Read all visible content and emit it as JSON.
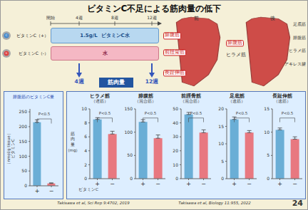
{
  "title": "ビタミンC不足による筋肉量の低下",
  "annotations": [
    "開始",
    "4週",
    "8週",
    "12週",
    "ビタミンC（+）",
    "1.5g/L  ビタミンC水",
    "ビタミンC（-）",
    "水",
    "C",
    "✕",
    "4週",
    "12週",
    "筋肉量",
    "前",
    "後",
    "腓腹筋",
    "前脛骨筋",
    "長趾伸筋",
    "腓腹筋",
    "ヒラメ筋",
    "足底筋",
    "腓腹筋",
    "ヒラメ筋",
    "アキレス腱",
    "Takisawa et al, Sci Rep 9:4702, 2019",
    "Takisawa et al, Biology 11:955, 2022",
    "24"
  ],
  "chart_data": [
    {
      "type": "bar",
      "title": "腓腹筋のビタミンC量",
      "ylabel": "（nmol/g tissue）\nビタミンC",
      "categories": [
        "+",
        "−"
      ],
      "values": [
        215,
        8
      ],
      "errors": [
        8,
        2
      ],
      "colors": [
        "#6aaed6",
        "#e87880"
      ],
      "ylim": [
        0,
        260
      ],
      "yticks": [
        0,
        50,
        100,
        150,
        200,
        250
      ],
      "annotations": [
        "P<0.5"
      ]
    },
    {
      "type": "bar",
      "title": "ヒラメ筋",
      "subtitle": "（遅筋）",
      "ylabel": "筋\n肉\n量\n（mg）",
      "xlabel": "ビタミンC",
      "categories": [
        "+",
        "−"
      ],
      "values": [
        8.5,
        6.4
      ],
      "errors": [
        0.25,
        0.4
      ],
      "colors": [
        "#6aaed6",
        "#e87880"
      ],
      "ylim": [
        0,
        10
      ],
      "yticks": [
        0,
        2,
        4,
        6,
        8,
        10
      ],
      "annotations": [
        "P<0.5"
      ]
    },
    {
      "type": "bar",
      "title": "腓腹筋",
      "subtitle": "（混合筋）",
      "categories": [
        "+",
        "−"
      ],
      "values": [
        122,
        87
      ],
      "errors": [
        5,
        7
      ],
      "colors": [
        "#6aaed6",
        "#e87880"
      ],
      "ylim": [
        0,
        150
      ],
      "yticks": [
        0,
        50,
        100,
        150
      ],
      "annotations": [
        "P<0.5"
      ]
    },
    {
      "type": "bar",
      "title": "前脛骨筋",
      "subtitle": "（混合筋）",
      "categories": [
        "+",
        "−"
      ],
      "values": [
        46,
        33
      ],
      "errors": [
        1.5,
        2.0
      ],
      "colors": [
        "#6aaed6",
        "#e87880"
      ],
      "ylim": [
        0,
        50
      ],
      "yticks": [
        0,
        10,
        20,
        30,
        40,
        50
      ],
      "annotations": [
        "P<0.5"
      ]
    },
    {
      "type": "bar",
      "title": "足底筋",
      "subtitle": "（速筋）",
      "categories": [
        "+",
        "−"
      ],
      "values": [
        17,
        13.2
      ],
      "errors": [
        0.7,
        0.6
      ],
      "colors": [
        "#6aaed6",
        "#e87880"
      ],
      "ylim": [
        0,
        20
      ],
      "yticks": [
        0,
        5,
        10,
        15,
        20
      ],
      "annotations": [
        "P<0.5"
      ]
    },
    {
      "type": "bar",
      "title": "長趾伸筋",
      "subtitle": "（速筋）",
      "categories": [
        "+",
        "−"
      ],
      "values": [
        10.5,
        8.5
      ],
      "errors": [
        0.4,
        0.5
      ],
      "colors": [
        "#6aaed6",
        "#e87880"
      ],
      "ylim": [
        0,
        15
      ],
      "yticks": [
        0,
        5,
        10,
        15
      ],
      "annotations": [
        "P<0.5"
      ]
    }
  ]
}
